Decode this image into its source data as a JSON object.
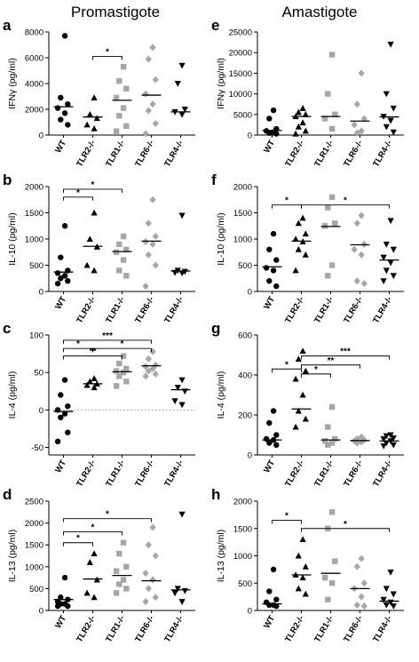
{
  "figure": {
    "column_titles": [
      "Promastigote",
      "Amastigote"
    ]
  },
  "colors": {
    "WT": "#000000",
    "TLR2-/-": "#000000",
    "TLR1-/-": "#a6a6a6",
    "TLR6-/-": "#a6a6a6",
    "TLR4-/-": "#000000",
    "axis": "#000000",
    "zero_line": "#9a9a9a"
  },
  "chart_data": [
    {
      "panel_letter": "a",
      "type": "scatter",
      "categories": [
        "WT",
        "TLR2-/-",
        "TLR1-/-",
        "TLR6-/-",
        "TLR4-/-"
      ],
      "ylabel": "IFNγ (pg/ml)",
      "ylim": [
        0,
        8000
      ],
      "yticks": [
        0,
        2000,
        4000,
        6000,
        8000
      ],
      "ytick_labels": [
        "0",
        "2000",
        "4000",
        "6000",
        "8000"
      ],
      "zero_line": false,
      "points": [
        [
          7700,
          2900,
          2400,
          2100,
          1700,
          1200,
          800
        ],
        [
          2900,
          1600,
          1300,
          800,
          500
        ],
        [
          5300,
          4200,
          3600,
          2900,
          2100,
          1500,
          700,
          300
        ],
        [
          6800,
          5900,
          4300,
          3200,
          2400,
          1900,
          900,
          100
        ],
        [
          5400,
          4000,
          2000,
          1800,
          1600
        ]
      ],
      "medians": [
        2200,
        1400,
        2700,
        3100,
        1800
      ],
      "brackets": [
        {
          "from": 1,
          "to": 2,
          "label": "*",
          "y": 6100
        }
      ]
    },
    {
      "panel_letter": "b",
      "type": "scatter",
      "categories": [
        "WT",
        "TLR2-/-",
        "TLR1-/-",
        "TLR6-/-",
        "TLR4-/-"
      ],
      "ylabel": "IL-10 (pg/ml)",
      "ylim": [
        0,
        2000
      ],
      "yticks": [
        0,
        500,
        1000,
        1500,
        2000
      ],
      "ytick_labels": [
        "0",
        "500",
        "1000",
        "1500",
        "2000"
      ],
      "zero_line": false,
      "points": [
        [
          1250,
          650,
          400,
          350,
          300,
          250,
          200,
          150
        ],
        [
          1500,
          1000,
          850,
          500,
          400
        ],
        [
          1050,
          900,
          800,
          750,
          600,
          400,
          300
        ],
        [
          1750,
          1300,
          1050,
          950,
          900,
          700,
          500,
          100
        ],
        [
          1450,
          400,
          380,
          360,
          350
        ]
      ],
      "medians": [
        370,
        860,
        760,
        960,
        390
      ],
      "brackets": [
        {
          "from": 0,
          "to": 1,
          "label": "*",
          "y": 1800
        },
        {
          "from": 0,
          "to": 2,
          "label": "*",
          "y": 1950
        }
      ]
    },
    {
      "panel_letter": "c",
      "type": "scatter",
      "categories": [
        "WT",
        "TLR2-/-",
        "TLR1-/-",
        "TLR6-/-",
        "TLR4-/-"
      ],
      "ylabel": "IL-4 (pg/ml)",
      "ylim": [
        -60,
        100
      ],
      "yticks": [
        -50,
        0,
        50,
        100
      ],
      "ytick_labels": [
        "-50",
        "0",
        "50",
        "100"
      ],
      "zero_line": true,
      "points": [
        [
          40,
          20,
          5,
          0,
          -5,
          -10,
          -30,
          -42
        ],
        [
          42,
          38,
          35,
          33,
          30
        ],
        [
          72,
          62,
          55,
          52,
          50,
          45,
          38,
          32
        ],
        [
          78,
          68,
          60,
          58,
          55,
          52,
          48,
          45
        ],
        [
          40,
          30,
          25,
          12,
          7
        ]
      ],
      "medians": [
        -2,
        35,
        51,
        59,
        27
      ],
      "brackets": [
        {
          "from": 0,
          "to": 1,
          "label": "*",
          "y": 82
        },
        {
          "from": 0,
          "to": 2,
          "label": "**",
          "y": 72
        },
        {
          "from": 0,
          "to": 3,
          "label": "***",
          "y": 93
        },
        {
          "from": 1,
          "to": 3,
          "label": "*",
          "y": 82
        }
      ]
    },
    {
      "panel_letter": "d",
      "type": "scatter",
      "categories": [
        "WT",
        "TLR2-/-",
        "TLR1-/-",
        "TLR6-/-",
        "TLR4-/-"
      ],
      "ylabel": "IL-13 (pg/ml)",
      "ylim": [
        0,
        2500
      ],
      "yticks": [
        0,
        500,
        1000,
        1500,
        2000,
        2500
      ],
      "ytick_labels": [
        "0",
        "500",
        "1000",
        "1500",
        "2000",
        "2500"
      ],
      "zero_line": false,
      "points": [
        [
          750,
          300,
          250,
          200,
          150,
          150,
          100,
          100
        ],
        [
          1300,
          1100,
          700,
          400,
          300
        ],
        [
          1550,
          1300,
          1000,
          900,
          700,
          600,
          500,
          400
        ],
        [
          1900,
          1500,
          1250,
          850,
          700,
          500,
          300,
          200
        ],
        [
          2200,
          500,
          450,
          400,
          200
        ]
      ],
      "medians": [
        250,
        720,
        800,
        680,
        470
      ],
      "brackets": [
        {
          "from": 0,
          "to": 1,
          "label": "*",
          "y": 1550
        },
        {
          "from": 0,
          "to": 2,
          "label": "*",
          "y": 1800
        },
        {
          "from": 0,
          "to": 3,
          "label": "*",
          "y": 2100
        }
      ]
    },
    {
      "panel_letter": "e",
      "type": "scatter",
      "categories": [
        "WT",
        "TLR2-/-",
        "TLR1-/-",
        "TLR6-/-",
        "TLR4-/-"
      ],
      "ylabel": "IFNγ (pg/ml)",
      "ylim": [
        0,
        25000
      ],
      "yticks": [
        0,
        5000,
        10000,
        15000,
        20000,
        25000
      ],
      "ytick_labels": [
        "0",
        "5000",
        "10000",
        "15000",
        "20000",
        "25000"
      ],
      "zero_line": false,
      "points": [
        [
          6000,
          4000,
          1500,
          1000,
          700,
          500,
          300
        ],
        [
          6500,
          5500,
          5000,
          4500,
          3000,
          2000,
          1000,
          300
        ],
        [
          19500,
          10000,
          5000,
          4000,
          1500
        ],
        [
          15000,
          7500,
          4000,
          2500,
          1000,
          500
        ],
        [
          22000,
          10000,
          6500,
          4500,
          3500,
          2000,
          700
        ]
      ],
      "medians": [
        1100,
        4500,
        4500,
        3400,
        4400
      ],
      "brackets": []
    },
    {
      "panel_letter": "f",
      "type": "scatter",
      "categories": [
        "WT",
        "TLR2-/-",
        "TLR1-/-",
        "TLR6-/-",
        "TLR4-/-"
      ],
      "ylabel": "IL-10 (pg/ml)",
      "ylim": [
        0,
        2000
      ],
      "yticks": [
        0,
        500,
        1000,
        1500,
        2000
      ],
      "ytick_labels": [
        "0",
        "500",
        "1000",
        "1500",
        "2000"
      ],
      "zero_line": false,
      "points": [
        [
          1100,
          800,
          600,
          450,
          400,
          200,
          100
        ],
        [
          1400,
          1300,
          1100,
          1000,
          950,
          800,
          700,
          400
        ],
        [
          1800,
          1600,
          1300,
          1250,
          500,
          300
        ],
        [
          1450,
          1300,
          900,
          800,
          700,
          200,
          150
        ],
        [
          1350,
          900,
          800,
          650,
          550,
          400,
          300,
          200
        ]
      ],
      "medians": [
        470,
        960,
        1240,
        890,
        600
      ],
      "brackets": [
        {
          "from": 0,
          "to": 1,
          "label": "*",
          "y": 1650
        },
        {
          "from": 1,
          "to": 4,
          "label": "*",
          "y": 1650
        }
      ]
    },
    {
      "panel_letter": "g",
      "type": "scatter",
      "categories": [
        "WT",
        "TLR2-/-",
        "TLR1-/-",
        "TLR6-/-",
        "TLR4-/-"
      ],
      "ylabel": "IL-4 (pg/ml)",
      "ylim": [
        0,
        600
      ],
      "yticks": [
        0,
        200,
        400,
        600
      ],
      "ytick_labels": [
        "0",
        "200",
        "400",
        "600"
      ],
      "zero_line": false,
      "points": [
        [
          220,
          160,
          100,
          80,
          75,
          60,
          50
        ],
        [
          520,
          480,
          420,
          380,
          300,
          220,
          180,
          140
        ],
        [
          240,
          140,
          80,
          70,
          60,
          50
        ],
        [
          90,
          80,
          75,
          70,
          65,
          60
        ],
        [
          100,
          95,
          85,
          80,
          70,
          60,
          50,
          45
        ]
      ],
      "medians": [
        75,
        230,
        75,
        72,
        70
      ],
      "brackets": [
        {
          "from": 0,
          "to": 1,
          "label": "*",
          "y": 430
        },
        {
          "from": 1,
          "to": 2,
          "label": "*",
          "y": 405
        },
        {
          "from": 1,
          "to": 3,
          "label": "**",
          "y": 450
        },
        {
          "from": 1,
          "to": 4,
          "label": "***",
          "y": 495
        }
      ]
    },
    {
      "panel_letter": "h",
      "type": "scatter",
      "categories": [
        "WT",
        "TLR2-/-",
        "TLR1-/-",
        "TLR6-/-",
        "TLR4-/-"
      ],
      "ylabel": "IL-13 (pg/ml)",
      "ylim": [
        0,
        2000
      ],
      "yticks": [
        0,
        500,
        1000,
        1500,
        2000
      ],
      "ytick_labels": [
        "0",
        "500",
        "1000",
        "1500",
        "2000"
      ],
      "zero_line": false,
      "points": [
        [
          750,
          350,
          200,
          150,
          100,
          100,
          80
        ],
        [
          1300,
          1000,
          800,
          650,
          600,
          400,
          300
        ],
        [
          1800,
          1500,
          900,
          600,
          500,
          200
        ],
        [
          950,
          800,
          500,
          400,
          250,
          100,
          80
        ],
        [
          700,
          400,
          300,
          200,
          150,
          100,
          80
        ]
      ],
      "medians": [
        120,
        650,
        680,
        400,
        170
      ],
      "brackets": [
        {
          "from": 0,
          "to": 1,
          "label": "*",
          "y": 1650
        },
        {
          "from": 1,
          "to": 4,
          "label": "*",
          "y": 1500
        }
      ]
    }
  ]
}
